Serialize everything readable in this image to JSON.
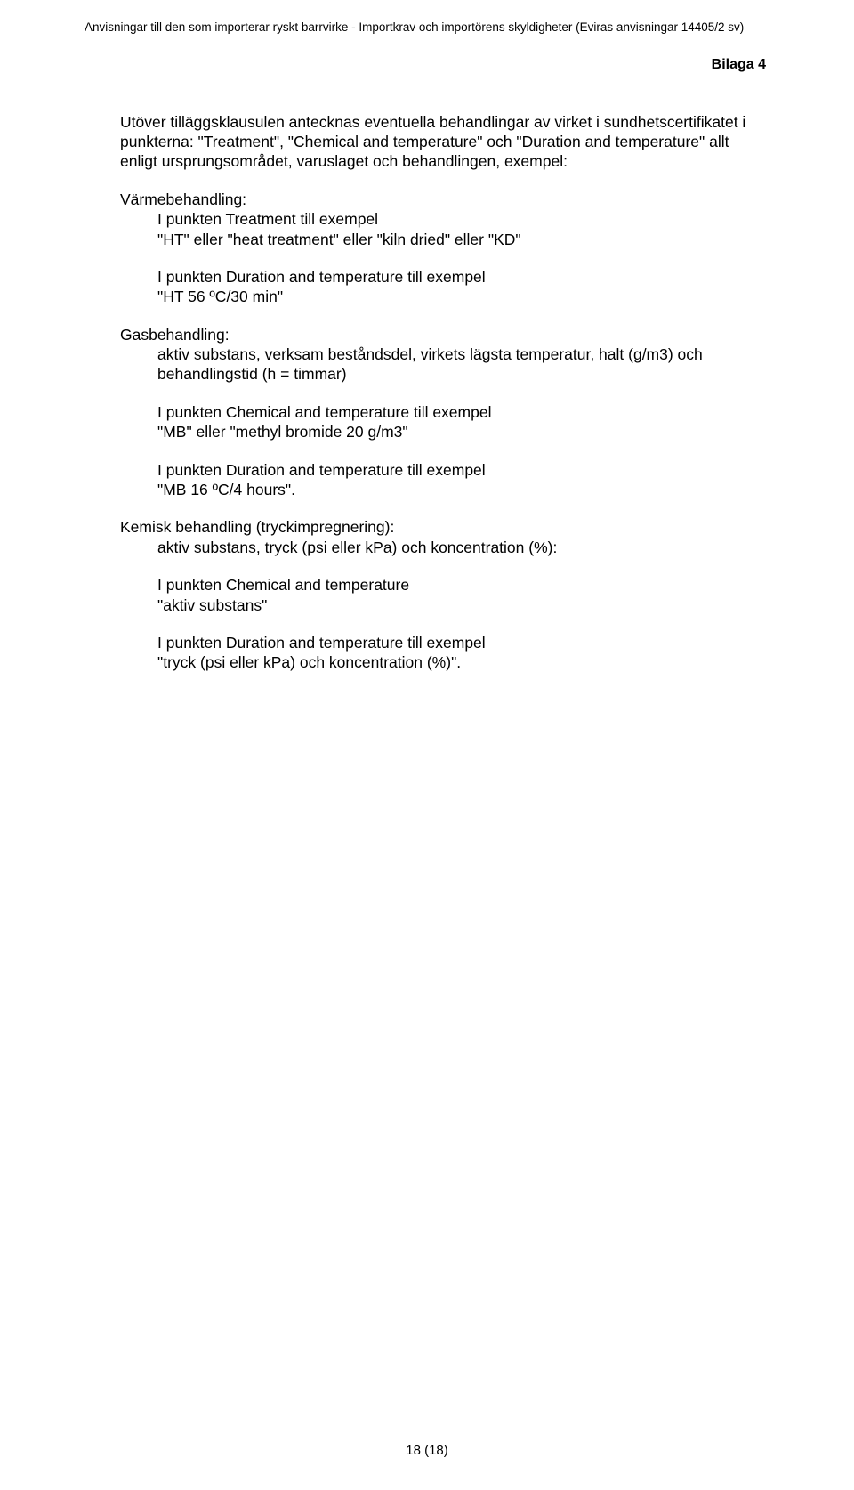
{
  "header": "Anvisningar till den som importerar ryskt barrvirke - Importkrav och importörens skyldigheter (Eviras anvisningar 14405/2 sv)",
  "bilaga": "Bilaga 4",
  "p_intro": "Utöver tilläggsklausulen antecknas eventuella behandlingar av virket i sundhetscertifikatet i punkterna: \"Treatment\", \"Chemical and temperature\" och \"Duration and temperature\" allt enligt ursprungsområdet, varuslaget och behandlingen, exempel:",
  "varme_head": "Värmebehandling:",
  "varme_l1": "I punkten Treatment till exempel",
  "varme_l2": "\"HT\" eller \"heat treatment\" eller \"kiln dried\" eller \"KD\"",
  "varme_l3": "I punkten Duration and temperature till exempel",
  "varme_l4": "\"HT 56 ºC/30 min\"",
  "gas_head": "Gasbehandling:",
  "gas_l1": "aktiv substans, verksam beståndsdel, virkets lägsta temperatur, halt (g/m3) och behandlingstid (h = timmar)",
  "gas_l2": "I punkten Chemical and temperature till exempel",
  "gas_l3": "\"MB\" eller \"methyl bromide 20 g/m3\"",
  "gas_l4": "I punkten Duration and temperature till exempel",
  "gas_l5": "\"MB 16 ºC/4 hours\".",
  "kem_head": "Kemisk behandling (tryckimpregnering):",
  "kem_l1": "aktiv substans, tryck (psi eller kPa) och koncentration (%):",
  "kem_l2": "I punkten Chemical and temperature",
  "kem_l3": "\"aktiv substans\"",
  "kem_l4": "I punkten Duration and temperature till exempel",
  "kem_l5": "\"tryck (psi eller kPa) och koncentration (%)\".",
  "footer": "18 (18)"
}
